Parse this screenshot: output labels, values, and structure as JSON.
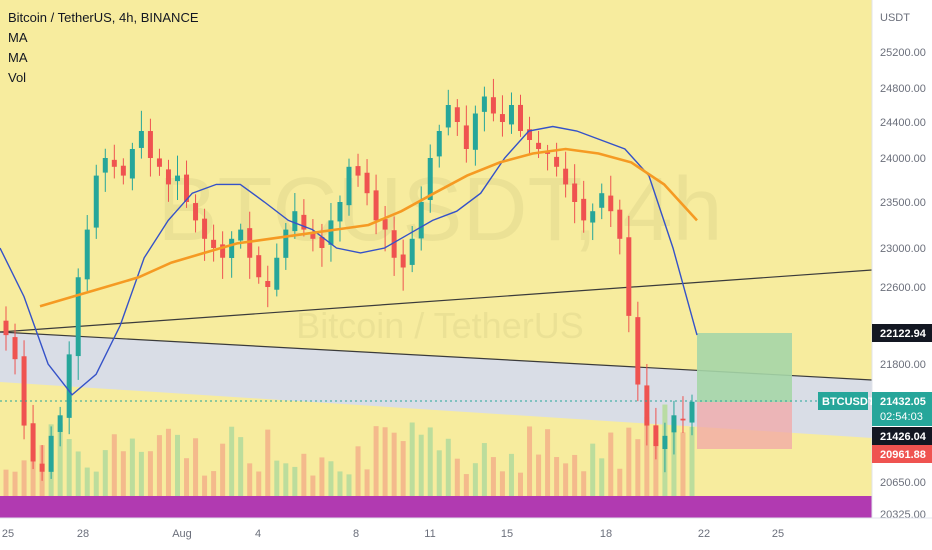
{
  "header": {
    "symbol_title": "Bitcoin / TetherUS, 4h, BINANCE",
    "indicators": [
      "MA",
      "MA",
      "Vol"
    ]
  },
  "watermark": {
    "ticker": "BTCUSDT, 4h",
    "name": "Bitcoin / TetherUS"
  },
  "axis": {
    "currency": "USDT",
    "y_ticks": [
      25200,
      24800,
      24400,
      24000,
      23500,
      23000,
      22600,
      21800,
      20650,
      20325
    ],
    "y_tick_labels": [
      "25200.00",
      "24800.00",
      "24400.00",
      "24000.00",
      "23500.00",
      "23000.00",
      "22600.00",
      "21800.00",
      "20650.00",
      "20325.00"
    ],
    "x_ticks": [
      "25",
      "28",
      "Aug",
      "4",
      "8",
      "11",
      "15",
      "18",
      "22",
      "25"
    ]
  },
  "price_tags": {
    "target": "22122.94",
    "symbol": "BTCUSDT",
    "last": "21432.05",
    "countdown": "02:54:03",
    "entry": "21426.04",
    "stop": "20961.88"
  },
  "colors": {
    "background_zone": "#f7ec9e",
    "upper_band": "#d9dde6",
    "volume_strip": "#b13ab1",
    "candle_up": "#26a69a",
    "candle_down": "#ef5350",
    "ma_fast": "#3552c8",
    "ma_slow": "#f59a23",
    "profit_zone": "#a5d6a7",
    "loss_zone": "#f5b5b5",
    "symbol_tag": "#26a69a",
    "stop_tag": "#ef5350"
  },
  "chart_data": {
    "type": "candlestick",
    "title": "Bitcoin / TetherUS, 4h, BINANCE",
    "timeframe": "4h",
    "x_axis": "date (Jul 25 – Aug 25)",
    "ylim": [
      20325,
      25400
    ],
    "ohlc_close_approx": [
      22100,
      21850,
      21200,
      20850,
      20750,
      21100,
      21300,
      21900,
      22700,
      23200,
      23800,
      24000,
      23900,
      23800,
      24100,
      24300,
      24000,
      23900,
      23700,
      23800,
      23500,
      23300,
      23100,
      23000,
      22900,
      23100,
      23200,
      22900,
      22700,
      22600,
      22900,
      23200,
      23400,
      23200,
      23100,
      23000,
      23300,
      23500,
      23900,
      23800,
      23600,
      23300,
      23200,
      22900,
      22800,
      23100,
      23500,
      24000,
      24300,
      24600,
      24400,
      24100,
      24500,
      24700,
      24500,
      24400,
      24600,
      24300,
      24200,
      24100,
      24050,
      23900,
      23700,
      23500,
      23300,
      23400,
      23600,
      23400,
      23100,
      22300,
      21600,
      21200,
      21000,
      21100,
      21300,
      21250,
      21432
    ],
    "ma_fast_approx": [
      23000,
      22500,
      21800,
      21500,
      21700,
      22200,
      22900,
      23300,
      23600,
      23700,
      23700,
      23500,
      23300,
      23200,
      23000,
      22950,
      23000,
      23150,
      23300,
      23400,
      23600,
      24000,
      24300,
      24350,
      24300,
      24200,
      24100,
      23800,
      23000,
      22100
    ],
    "ma_slow_approx": [
      22400,
      22500,
      22600,
      22700,
      22850,
      22950,
      23050,
      23100,
      23150,
      23200,
      23250,
      23400,
      23600,
      23800,
      23950,
      24050,
      24100,
      24050,
      23950,
      23700,
      23300
    ],
    "annotations": {
      "last_price": 21432.05,
      "take_profit": 22122.94,
      "entry": 21426.04,
      "stop_loss": 20961.88
    }
  }
}
